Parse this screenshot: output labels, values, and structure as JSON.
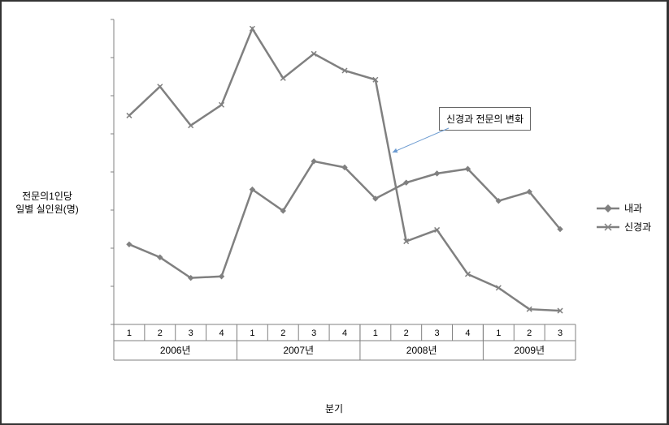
{
  "chart": {
    "type": "line",
    "ylabel_line1": "전문의1인당",
    "ylabel_line2": "일별 실인원(명)",
    "xlabel": "분기",
    "ylim": [
      0,
      4
    ],
    "ytick_step": 0.5,
    "yticks": [
      0,
      0.5,
      1,
      1.5,
      2,
      2.5,
      3,
      3.5,
      4
    ],
    "years": [
      "2006년",
      "2007년",
      "2008년",
      "2009년"
    ],
    "quarters_per_year": [
      4,
      4,
      4,
      3
    ],
    "categories": [
      "1",
      "2",
      "3",
      "4",
      "1",
      "2",
      "3",
      "4",
      "1",
      "2",
      "3",
      "4",
      "1",
      "2",
      "3"
    ],
    "series": [
      {
        "name": "내과",
        "marker": "diamond",
        "color": "#808080",
        "values": [
          1.05,
          0.88,
          0.61,
          0.63,
          1.77,
          1.49,
          2.14,
          2.06,
          1.65,
          1.86,
          1.98,
          2.04,
          1.62,
          1.74,
          1.25
        ]
      },
      {
        "name": "신경과",
        "marker": "x",
        "color": "#808080",
        "values": [
          2.74,
          3.12,
          2.61,
          2.88,
          3.88,
          3.23,
          3.55,
          3.33,
          3.21,
          1.09,
          1.24,
          0.66,
          0.48,
          0.2,
          0.18
        ]
      }
    ],
    "annotation": {
      "text": "신경과 전문의 변화",
      "arrow_color": "#6c9bd1"
    },
    "background_color": "#ffffff",
    "axis_color": "#808080",
    "line_width": 2.5,
    "marker_size": 6
  },
  "legend": {
    "items": [
      {
        "label": "내과",
        "marker": "diamond"
      },
      {
        "label": "신경과",
        "marker": "x"
      }
    ]
  }
}
